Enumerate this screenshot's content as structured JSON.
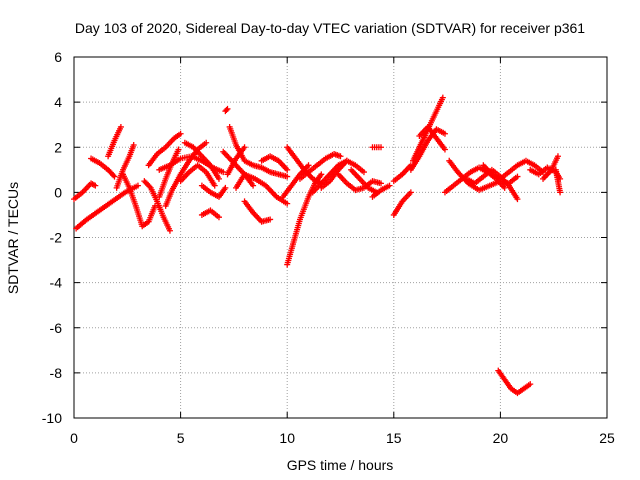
{
  "chart_data": {
    "type": "scatter",
    "title": "Day 103 of 2020, Sidereal Day-to-day VTEC variation (SDTVAR) for receiver p361",
    "xlabel": "GPS time / hours",
    "ylabel": "SDTVAR / TECUs",
    "xlim": [
      0,
      25
    ],
    "ylim": [
      -10,
      6
    ],
    "xticks": [
      0,
      5,
      10,
      15,
      20,
      25
    ],
    "yticks": [
      -10,
      -8,
      -6,
      -4,
      -2,
      0,
      2,
      4,
      6
    ],
    "grid": true,
    "marker": "+",
    "series": [
      {
        "name": "SDTVAR",
        "color": "#ff0000",
        "tracks": [
          [
            [
              0.0,
              -0.3
            ],
            [
              0.4,
              0.0
            ],
            [
              0.8,
              0.4
            ],
            [
              1.0,
              0.3
            ]
          ],
          [
            [
              0.1,
              -1.6
            ],
            [
              0.6,
              -1.2
            ],
            [
              1.2,
              -0.8
            ],
            [
              1.8,
              -0.4
            ],
            [
              2.4,
              0.0
            ],
            [
              3.0,
              0.3
            ]
          ],
          [
            [
              0.8,
              1.5
            ],
            [
              1.2,
              1.3
            ],
            [
              1.6,
              1.0
            ],
            [
              1.9,
              0.7
            ]
          ],
          [
            [
              1.6,
              1.6
            ],
            [
              1.9,
              2.3
            ],
            [
              2.2,
              2.9
            ]
          ],
          [
            [
              2.0,
              0.2
            ],
            [
              2.3,
              1.0
            ],
            [
              2.6,
              1.6
            ],
            [
              2.8,
              2.1
            ]
          ],
          [
            [
              2.3,
              0.8
            ],
            [
              2.6,
              0.2
            ],
            [
              2.9,
              -0.6
            ],
            [
              3.2,
              -1.5
            ],
            [
              3.5,
              -1.3
            ],
            [
              3.8,
              -0.6
            ]
          ],
          [
            [
              3.3,
              0.5
            ],
            [
              3.6,
              0.2
            ],
            [
              3.9,
              -0.4
            ],
            [
              4.2,
              -1.1
            ],
            [
              4.5,
              -1.7
            ]
          ],
          [
            [
              3.5,
              1.2
            ],
            [
              3.9,
              1.7
            ],
            [
              4.3,
              2.0
            ],
            [
              4.7,
              2.4
            ],
            [
              5.0,
              2.6
            ]
          ],
          [
            [
              4.0,
              -0.2
            ],
            [
              4.3,
              0.6
            ],
            [
              4.6,
              1.3
            ],
            [
              4.9,
              1.9
            ]
          ],
          [
            [
              4.3,
              -0.6
            ],
            [
              4.6,
              0.1
            ],
            [
              5.0,
              0.8
            ],
            [
              5.4,
              1.4
            ],
            [
              5.8,
              1.9
            ],
            [
              6.2,
              2.2
            ]
          ],
          [
            [
              4.0,
              1.0
            ],
            [
              4.5,
              1.2
            ],
            [
              5.0,
              1.5
            ],
            [
              5.5,
              1.6
            ],
            [
              6.0,
              1.4
            ],
            [
              6.5,
              1.1
            ],
            [
              7.0,
              0.9
            ]
          ],
          [
            [
              5.0,
              0.5
            ],
            [
              5.4,
              0.9
            ],
            [
              5.8,
              1.2
            ],
            [
              6.2,
              0.9
            ],
            [
              6.6,
              0.3
            ]
          ],
          [
            [
              5.2,
              2.2
            ],
            [
              5.6,
              2.0
            ],
            [
              6.0,
              1.6
            ],
            [
              6.4,
              1.2
            ],
            [
              6.8,
              0.6
            ]
          ],
          [
            [
              6.0,
              0.3
            ],
            [
              6.4,
              0.0
            ],
            [
              6.8,
              -0.2
            ],
            [
              7.1,
              0.2
            ]
          ],
          [
            [
              6.0,
              -1.0
            ],
            [
              6.4,
              -0.8
            ],
            [
              6.8,
              -1.1
            ]
          ],
          [
            [
              7.1,
              3.6
            ],
            [
              7.2,
              3.7
            ]
          ],
          [
            [
              7.0,
              1.8
            ],
            [
              7.5,
              1.3
            ],
            [
              8.0,
              0.8
            ],
            [
              8.4,
              0.3
            ]
          ],
          [
            [
              7.2,
              0.8
            ],
            [
              7.6,
              1.5
            ],
            [
              8.0,
              2.0
            ]
          ],
          [
            [
              7.3,
              2.9
            ],
            [
              7.6,
              2.1
            ],
            [
              8.0,
              1.4
            ],
            [
              8.4,
              1.2
            ],
            [
              8.8,
              1.1
            ],
            [
              9.2,
              0.9
            ],
            [
              9.6,
              0.8
            ],
            [
              10.0,
              0.7
            ]
          ],
          [
            [
              7.6,
              0.2
            ],
            [
              8.0,
              0.8
            ],
            [
              8.5,
              0.6
            ],
            [
              9.0,
              0.3
            ],
            [
              9.5,
              -0.2
            ],
            [
              10.0,
              -0.5
            ]
          ],
          [
            [
              8.0,
              -0.4
            ],
            [
              8.4,
              -0.9
            ],
            [
              8.8,
              -1.3
            ],
            [
              9.2,
              -1.2
            ]
          ],
          [
            [
              8.8,
              1.4
            ],
            [
              9.2,
              1.6
            ],
            [
              9.6,
              1.4
            ],
            [
              10.0,
              1.0
            ]
          ],
          [
            [
              9.8,
              -0.2
            ],
            [
              10.2,
              0.3
            ],
            [
              10.6,
              0.8
            ],
            [
              11.0,
              1.2
            ]
          ],
          [
            [
              10.0,
              -3.2
            ],
            [
              10.3,
              -2.2
            ],
            [
              10.6,
              -1.2
            ],
            [
              11.0,
              -0.2
            ],
            [
              11.3,
              0.4
            ],
            [
              11.6,
              0.8
            ]
          ],
          [
            [
              10.0,
              2.0
            ],
            [
              10.4,
              1.5
            ],
            [
              10.8,
              1.0
            ],
            [
              11.2,
              0.6
            ],
            [
              11.6,
              0.4
            ]
          ],
          [
            [
              10.6,
              0.6
            ],
            [
              11.0,
              0.9
            ],
            [
              11.4,
              1.2
            ],
            [
              11.8,
              1.5
            ],
            [
              12.2,
              1.7
            ],
            [
              12.5,
              1.6
            ]
          ],
          [
            [
              11.2,
              0.0
            ],
            [
              11.6,
              0.4
            ],
            [
              12.0,
              0.8
            ],
            [
              12.4,
              1.2
            ],
            [
              12.8,
              1.4
            ]
          ],
          [
            [
              11.6,
              0.2
            ],
            [
              12.0,
              0.5
            ],
            [
              12.4,
              1.0
            ],
            [
              12.8,
              1.4
            ],
            [
              13.2,
              1.2
            ],
            [
              13.6,
              0.9
            ]
          ],
          [
            [
              12.4,
              0.8
            ],
            [
              12.8,
              0.4
            ],
            [
              13.2,
              0.1
            ],
            [
              13.6,
              0.2
            ],
            [
              14.0,
              0.5
            ],
            [
              14.4,
              0.4
            ]
          ],
          [
            [
              13.0,
              1.0
            ],
            [
              13.4,
              0.6
            ],
            [
              13.8,
              0.2
            ],
            [
              14.2,
              0.0
            ]
          ],
          [
            [
              14.0,
              2.0
            ],
            [
              14.4,
              2.0
            ]
          ],
          [
            [
              14.0,
              -0.2
            ],
            [
              14.4,
              0.1
            ],
            [
              14.8,
              0.3
            ]
          ],
          [
            [
              15.0,
              -1.0
            ],
            [
              15.4,
              -0.4
            ],
            [
              15.8,
              0.0
            ]
          ],
          [
            [
              15.0,
              0.5
            ],
            [
              15.4,
              0.8
            ],
            [
              15.8,
              1.2
            ]
          ],
          [
            [
              15.8,
              1.0
            ],
            [
              16.2,
              1.6
            ],
            [
              16.6,
              2.3
            ],
            [
              17.0,
              2.8
            ],
            [
              17.4,
              2.6
            ]
          ],
          [
            [
              15.9,
              1.4
            ],
            [
              16.3,
              2.2
            ],
            [
              16.7,
              3.0
            ],
            [
              17.0,
              3.6
            ],
            [
              17.3,
              4.2
            ]
          ],
          [
            [
              16.2,
              2.5
            ],
            [
              16.6,
              2.9
            ],
            [
              17.0,
              2.4
            ],
            [
              17.4,
              1.9
            ]
          ],
          [
            [
              17.6,
              1.4
            ],
            [
              18.0,
              0.9
            ],
            [
              18.5,
              0.4
            ],
            [
              19.0,
              0.1
            ],
            [
              19.5,
              0.3
            ],
            [
              20.0,
              0.5
            ],
            [
              20.4,
              0.4
            ],
            [
              20.8,
              0.7
            ]
          ],
          [
            [
              17.4,
              0.0
            ],
            [
              17.8,
              0.3
            ],
            [
              18.2,
              0.6
            ],
            [
              18.6,
              0.9
            ],
            [
              19.0,
              1.1
            ],
            [
              19.4,
              0.9
            ],
            [
              19.8,
              0.6
            ],
            [
              20.2,
              0.2
            ]
          ],
          [
            [
              18.4,
              0.6
            ],
            [
              18.8,
              0.4
            ],
            [
              19.2,
              0.7
            ],
            [
              19.6,
              1.0
            ],
            [
              20.0,
              0.7
            ],
            [
              20.4,
              0.3
            ],
            [
              20.8,
              -0.3
            ]
          ],
          [
            [
              19.2,
              1.2
            ],
            [
              19.6,
              0.8
            ],
            [
              20.0,
              0.6
            ],
            [
              20.4,
              0.9
            ],
            [
              20.8,
              1.2
            ],
            [
              21.2,
              1.4
            ],
            [
              21.6,
              1.2
            ],
            [
              22.0,
              0.9
            ]
          ],
          [
            [
              21.4,
              1.0
            ],
            [
              21.8,
              0.8
            ],
            [
              22.2,
              1.1
            ],
            [
              22.6,
              0.9
            ],
            [
              22.8,
              0.6
            ]
          ],
          [
            [
              22.0,
              0.6
            ],
            [
              22.4,
              1.0
            ],
            [
              22.7,
              1.6
            ]
          ],
          [
            [
              22.6,
              1.0
            ],
            [
              22.7,
              0.5
            ],
            [
              22.8,
              0.0
            ]
          ],
          [
            [
              19.9,
              -7.9
            ],
            [
              20.2,
              -8.3
            ],
            [
              20.5,
              -8.7
            ],
            [
              20.8,
              -8.9
            ],
            [
              21.1,
              -8.7
            ],
            [
              21.4,
              -8.5
            ]
          ]
        ]
      }
    ]
  }
}
